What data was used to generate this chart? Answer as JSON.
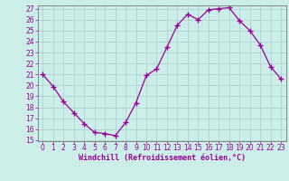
{
  "x": [
    0,
    1,
    2,
    3,
    4,
    5,
    6,
    7,
    8,
    9,
    10,
    11,
    12,
    13,
    14,
    15,
    16,
    17,
    18,
    19,
    20,
    21,
    22,
    23
  ],
  "y": [
    21.0,
    19.9,
    18.5,
    17.5,
    16.5,
    15.7,
    15.6,
    15.4,
    16.6,
    18.4,
    20.9,
    21.5,
    23.5,
    25.5,
    26.5,
    26.0,
    26.9,
    27.0,
    27.1,
    25.9,
    25.0,
    23.7,
    21.7,
    20.6
  ],
  "line_color": "#990099",
  "marker": "+",
  "marker_size": 4,
  "linewidth": 0.9,
  "xlabel": "Windchill (Refroidissement éolien,°C)",
  "xlabel_fontsize": 6.0,
  "bg_color": "#cceee8",
  "grid_color": "#aacccc",
  "ylim": [
    15,
    27
  ],
  "xlim": [
    -0.5,
    23.5
  ],
  "yticks": [
    15,
    16,
    17,
    18,
    19,
    20,
    21,
    22,
    23,
    24,
    25,
    26,
    27
  ],
  "xticks": [
    0,
    1,
    2,
    3,
    4,
    5,
    6,
    7,
    8,
    9,
    10,
    11,
    12,
    13,
    14,
    15,
    16,
    17,
    18,
    19,
    20,
    21,
    22,
    23
  ],
  "tick_fontsize": 5.5,
  "tick_color": "#990099",
  "spine_color": "#777777"
}
